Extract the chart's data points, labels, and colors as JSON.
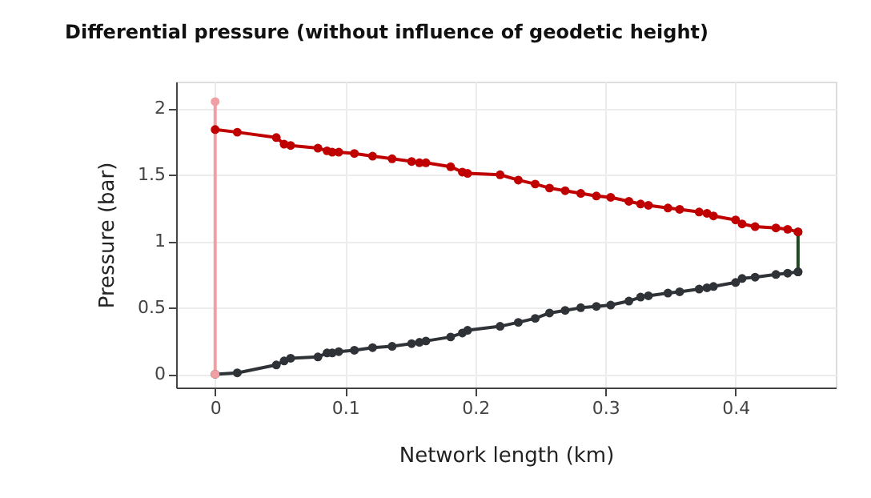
{
  "chart_data": {
    "type": "line",
    "title": "Differential pressure (without influence of geodetic height)",
    "xlabel": "Network length (km)",
    "ylabel": "Pressure (bar)",
    "xlim": [
      -0.03,
      0.477
    ],
    "ylim": [
      -0.1,
      2.2
    ],
    "xticks": [
      0,
      0.1,
      0.2,
      0.3,
      0.4
    ],
    "yticks": [
      0,
      0.5,
      1,
      1.5,
      2
    ],
    "grid": true,
    "marker": "circle",
    "line_style": "solid",
    "series": [
      {
        "color": "#c00000",
        "x": [
          0,
          0.017,
          0.047,
          0.053,
          0.058,
          0.079,
          0.086,
          0.09,
          0.095,
          0.107,
          0.121,
          0.136,
          0.151,
          0.157,
          0.162,
          0.181,
          0.19,
          0.194,
          0.219,
          0.233,
          0.246,
          0.257,
          0.269,
          0.281,
          0.293,
          0.304,
          0.318,
          0.327,
          0.333,
          0.348,
          0.357,
          0.372,
          0.378,
          0.383,
          0.4,
          0.405,
          0.415,
          0.431,
          0.44,
          0.448
        ],
        "values": [
          1.84,
          1.82,
          1.78,
          1.73,
          1.72,
          1.7,
          1.68,
          1.67,
          1.67,
          1.66,
          1.64,
          1.62,
          1.6,
          1.59,
          1.59,
          1.56,
          1.52,
          1.51,
          1.5,
          1.46,
          1.43,
          1.4,
          1.38,
          1.36,
          1.34,
          1.33,
          1.3,
          1.28,
          1.27,
          1.25,
          1.24,
          1.22,
          1.21,
          1.19,
          1.16,
          1.13,
          1.11,
          1.1,
          1.09,
          1.07
        ]
      },
      {
        "color": "#2f3237",
        "x": [
          0,
          0.017,
          0.047,
          0.053,
          0.058,
          0.079,
          0.086,
          0.09,
          0.095,
          0.107,
          0.121,
          0.136,
          0.151,
          0.157,
          0.162,
          0.181,
          0.19,
          0.194,
          0.219,
          0.233,
          0.246,
          0.257,
          0.269,
          0.281,
          0.293,
          0.304,
          0.318,
          0.327,
          0.333,
          0.348,
          0.357,
          0.372,
          0.378,
          0.383,
          0.4,
          0.405,
          0.415,
          0.431,
          0.44,
          0.448
        ],
        "values": [
          0,
          0.01,
          0.07,
          0.1,
          0.12,
          0.13,
          0.16,
          0.16,
          0.17,
          0.18,
          0.2,
          0.21,
          0.23,
          0.24,
          0.25,
          0.28,
          0.31,
          0.33,
          0.36,
          0.39,
          0.42,
          0.46,
          0.48,
          0.5,
          0.51,
          0.52,
          0.55,
          0.58,
          0.59,
          0.61,
          0.62,
          0.64,
          0.65,
          0.66,
          0.69,
          0.72,
          0.73,
          0.75,
          0.76,
          0.77
        ]
      },
      {
        "color": "#f0a0a4",
        "x": [
          0,
          0
        ],
        "values": [
          0,
          2.05
        ]
      },
      {
        "color": "#1f4a22",
        "x": [
          0.448,
          0.448
        ],
        "values": [
          1.07,
          0.77
        ]
      }
    ]
  }
}
